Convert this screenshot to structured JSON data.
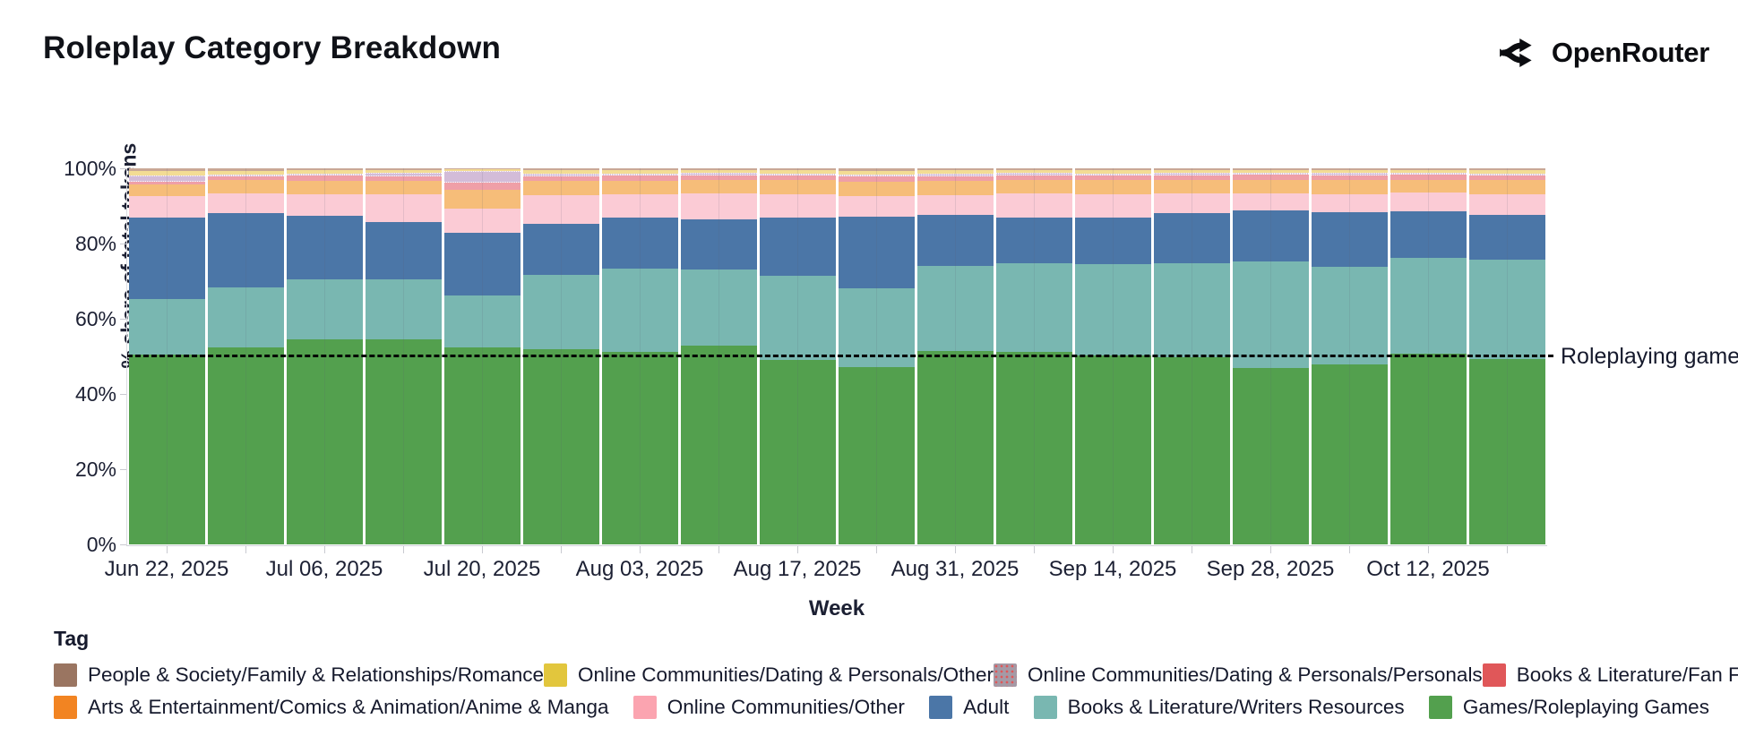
{
  "header": {
    "title": "Roleplay Category Breakdown",
    "brand": "OpenRouter"
  },
  "chart_data": {
    "type": "bar",
    "stacked": true,
    "title": "Roleplay Category Breakdown",
    "xlabel": "Week",
    "ylabel": "% share of total tokens",
    "ylim": [
      0,
      100
    ],
    "grid": false,
    "legend_position": "bottom",
    "y_ticks": [
      0,
      20,
      40,
      60,
      80,
      100
    ],
    "y_tick_labels": [
      "0%",
      "20%",
      "40%",
      "60%",
      "80%",
      "100%"
    ],
    "categories": [
      "Jun 22, 2025",
      "Jun 29, 2025",
      "Jul 06, 2025",
      "Jul 13, 2025",
      "Jul 20, 2025",
      "Jul 27, 2025",
      "Aug 03, 2025",
      "Aug 10, 2025",
      "Aug 17, 2025",
      "Aug 24, 2025",
      "Aug 31, 2025",
      "Sep 07, 2025",
      "Sep 14, 2025",
      "Sep 21, 2025",
      "Sep 28, 2025",
      "Oct 05, 2025",
      "Oct 12, 2025",
      "Oct 19, 2025"
    ],
    "labeled_category_indices": [
      0,
      2,
      4,
      6,
      8,
      10,
      12,
      14,
      16
    ],
    "series": [
      {
        "name": "Games/Roleplaying Games",
        "color": "#53a04e",
        "values": [
          50.5,
          52.3,
          54.5,
          54.6,
          52.3,
          51.8,
          51.2,
          52.9,
          49.1,
          47.1,
          51.4,
          51.2,
          50.2,
          49.7,
          47.0,
          47.9,
          50.7,
          49.3
        ]
      },
      {
        "name": "Books & Literature/Writers Resources",
        "color": "#79b7b1",
        "values": [
          14.7,
          16.0,
          16.0,
          15.9,
          13.9,
          19.9,
          22.1,
          20.2,
          22.3,
          21.1,
          22.7,
          23.6,
          24.3,
          25.1,
          28.3,
          25.8,
          25.6,
          26.4
        ]
      },
      {
        "name": "Adult",
        "color": "#4b76a7",
        "values": [
          21.7,
          19.9,
          17.0,
          15.3,
          16.7,
          13.5,
          13.5,
          13.3,
          15.6,
          19.0,
          13.5,
          12.2,
          12.3,
          13.2,
          13.5,
          14.7,
          12.3,
          11.9
        ]
      },
      {
        "name": "Online Communities/Other",
        "color": "#fbcbd5",
        "values": [
          5.7,
          5.1,
          5.7,
          7.2,
          6.3,
          7.7,
          6.3,
          6.9,
          6.2,
          5.4,
          5.3,
          6.3,
          6.4,
          5.3,
          4.5,
          4.8,
          4.9,
          5.4
        ]
      },
      {
        "name": "Arts & Entertainment/Comics & Animation/Anime & Manga",
        "color": "#f6bd79",
        "values": [
          3.1,
          3.5,
          3.5,
          3.6,
          5.2,
          3.7,
          3.6,
          3.7,
          3.6,
          3.8,
          3.7,
          3.6,
          3.6,
          3.6,
          3.7,
          3.7,
          3.5,
          3.8
        ]
      },
      {
        "name": "Books & Literature/Fan Fiction",
        "color": "#ef9fa7",
        "values": [
          0.7,
          1.0,
          1.3,
          1.3,
          1.8,
          1.3,
          1.3,
          1.2,
          1.3,
          1.4,
          1.3,
          1.3,
          1.3,
          1.3,
          1.3,
          1.3,
          1.3,
          1.3
        ]
      },
      {
        "name": "Online Communities/Dating & Personals/Personals",
        "color": "#d3bcd8",
        "pattern": "dots",
        "values": [
          1.6,
          0.6,
          0.6,
          0.9,
          3.1,
          0.6,
          0.5,
          0.5,
          0.5,
          0.6,
          0.6,
          0.5,
          0.5,
          0.5,
          0.5,
          0.5,
          0.5,
          0.5
        ]
      },
      {
        "name": "Online Communities/Dating & Personals/Other",
        "color": "#f3dc94",
        "values": [
          1.2,
          1.0,
          0.9,
          0.7,
          0.5,
          1.0,
          1.0,
          0.9,
          0.9,
          1.0,
          1.0,
          0.9,
          0.9,
          0.9,
          0.8,
          0.9,
          0.8,
          1.0
        ]
      },
      {
        "name": "People & Society/Family & Relationships/Romance",
        "color": "#c9a795",
        "values": [
          0.8,
          0.6,
          0.5,
          0.5,
          0.2,
          0.5,
          0.5,
          0.4,
          0.5,
          0.6,
          0.5,
          0.4,
          0.5,
          0.4,
          0.4,
          0.4,
          0.4,
          0.4
        ]
      }
    ],
    "annotation": {
      "label": "Roleplaying games",
      "y": 50,
      "line_style": "dashed",
      "line_color": "#000000"
    }
  },
  "legend": {
    "heading": "Tag",
    "rows": [
      [
        {
          "label": "People & Society/Family & Relationships/Romance",
          "swatch_color": "#9a7561"
        },
        {
          "label": "Online Communities/Dating & Personals/Other",
          "swatch_color": "#e2c63d"
        },
        {
          "label": "Online Communities/Dating & Personals/Personals",
          "swatch_color": "#a59aa6",
          "pattern": "dots"
        },
        {
          "label": "Books & Literature/Fan Fiction",
          "swatch_color": "#e05759"
        }
      ],
      [
        {
          "label": "Arts & Entertainment/Comics & Animation/Anime & Manga",
          "swatch_color": "#f28422"
        },
        {
          "label": "Online Communities/Other",
          "swatch_color": "#fba4b0"
        },
        {
          "label": "Adult",
          "swatch_color": "#4b76a7"
        },
        {
          "label": "Books & Literature/Writers Resources",
          "swatch_color": "#79b7b1"
        },
        {
          "label": "Games/Roleplaying Games",
          "swatch_color": "#53a04e"
        }
      ]
    ]
  }
}
